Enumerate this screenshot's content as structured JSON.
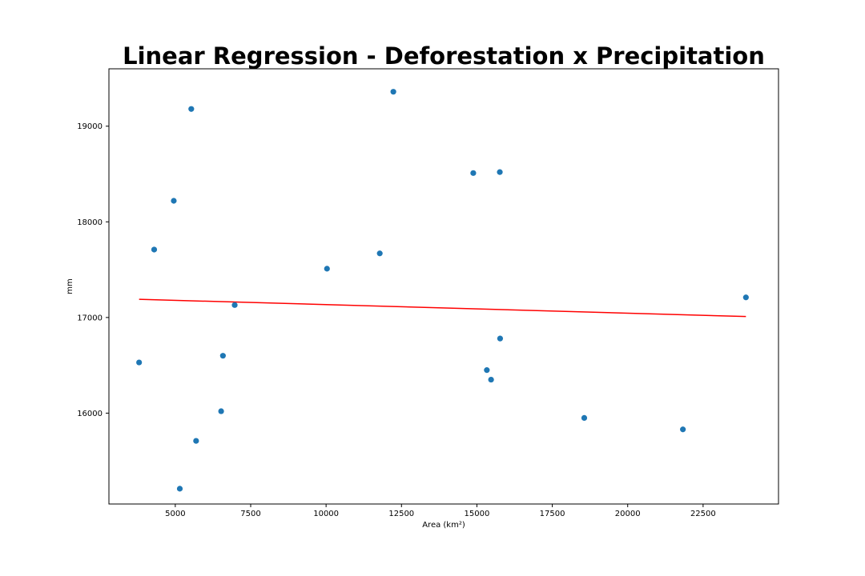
{
  "chart_data": {
    "type": "scatter",
    "title": "Linear Regression - Deforestation x Precipitation",
    "xlabel": "Area (km²)",
    "ylabel": "mm",
    "xlim": [
      2800,
      25000
    ],
    "ylim": [
      15050,
      19600
    ],
    "x_ticks": [
      5000,
      7500,
      10000,
      12500,
      15000,
      17500,
      20000,
      22500
    ],
    "y_ticks": [
      16000,
      17000,
      18000,
      19000
    ],
    "grid": false,
    "legend": "none",
    "colors": {
      "points": "#1f77b4",
      "regression": "#ff0000"
    },
    "series": [
      {
        "type": "scatter",
        "points": [
          {
            "x": 3800,
            "y": 16530
          },
          {
            "x": 4300,
            "y": 17710
          },
          {
            "x": 4950,
            "y": 18220
          },
          {
            "x": 5150,
            "y": 15210
          },
          {
            "x": 5530,
            "y": 19180
          },
          {
            "x": 5690,
            "y": 15710
          },
          {
            "x": 6520,
            "y": 16020
          },
          {
            "x": 6580,
            "y": 16600
          },
          {
            "x": 6970,
            "y": 17130
          },
          {
            "x": 10030,
            "y": 17510
          },
          {
            "x": 11780,
            "y": 17670
          },
          {
            "x": 12230,
            "y": 19360
          },
          {
            "x": 14880,
            "y": 18510
          },
          {
            "x": 15330,
            "y": 16450
          },
          {
            "x": 15470,
            "y": 16350
          },
          {
            "x": 15760,
            "y": 18520
          },
          {
            "x": 15770,
            "y": 16780
          },
          {
            "x": 18560,
            "y": 15950
          },
          {
            "x": 21830,
            "y": 15830
          },
          {
            "x": 23920,
            "y": 17210
          }
        ]
      },
      {
        "type": "line",
        "points": [
          {
            "x": 3800,
            "y": 17190
          },
          {
            "x": 23920,
            "y": 17010
          }
        ]
      }
    ]
  }
}
